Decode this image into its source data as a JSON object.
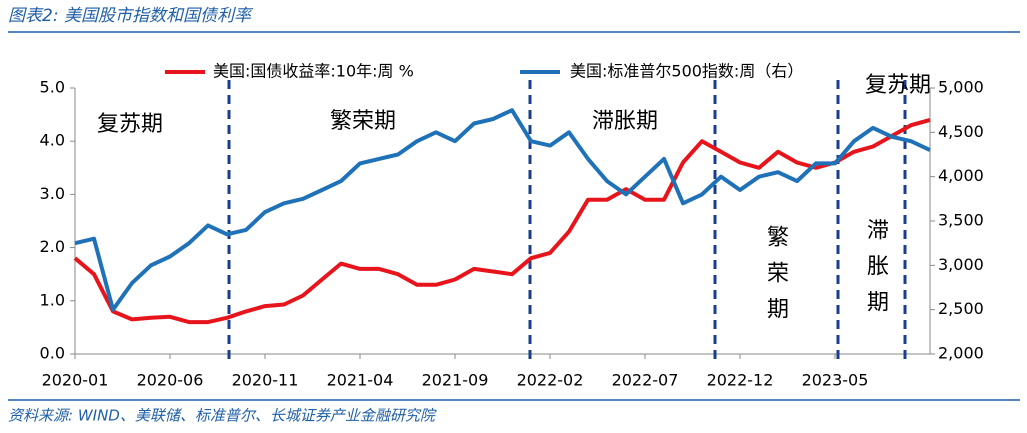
{
  "chart_data": {
    "type": "line",
    "title": "图表2: 美国股市指数和国债利率",
    "source": "资料来源: WIND、美联储、标准普尔、长城证券产业金融研究院",
    "categories": [
      "2020-01",
      null,
      null,
      null,
      null,
      "2020-06",
      null,
      null,
      null,
      null,
      "2020-11",
      null,
      null,
      null,
      null,
      "2021-04",
      null,
      null,
      null,
      null,
      "2021-09",
      null,
      null,
      null,
      null,
      "2022-02",
      null,
      null,
      null,
      null,
      "2022-07",
      null,
      null,
      null,
      null,
      "2022-12",
      null,
      null,
      null,
      null,
      "2023-05",
      null,
      null,
      null,
      null,
      null
    ],
    "series": [
      {
        "name": "美国:国债收益率:10年:周 %",
        "color": "#e8141b",
        "values": [
          1.8,
          1.5,
          0.8,
          0.65,
          0.68,
          0.7,
          0.6,
          0.6,
          0.68,
          0.8,
          0.9,
          0.93,
          1.1,
          1.4,
          1.7,
          1.6,
          1.6,
          1.5,
          1.3,
          1.3,
          1.4,
          1.6,
          1.55,
          1.5,
          1.8,
          1.9,
          2.3,
          2.9,
          2.9,
          3.1,
          2.9,
          2.9,
          3.6,
          4.0,
          3.8,
          3.6,
          3.5,
          3.8,
          3.6,
          3.5,
          3.6,
          3.8,
          3.9,
          4.1,
          4.3,
          4.4
        ]
      },
      {
        "name": "美国:标准普尔500指数:周（右）",
        "color": "#1f72b8",
        "axis": "y2",
        "values": [
          3250,
          3300,
          2500,
          2800,
          3000,
          3100,
          3250,
          3450,
          3350,
          3400,
          3600,
          3700,
          3750,
          3850,
          3950,
          4150,
          4200,
          4250,
          4400,
          4500,
          4400,
          4600,
          4650,
          4750,
          4400,
          4350,
          4500,
          4200,
          3950,
          3800,
          4000,
          4200,
          3700,
          3800,
          4000,
          3850,
          4000,
          4050,
          3950,
          4150,
          4150,
          4400,
          4550,
          4450,
          4400,
          4300
        ]
      }
    ],
    "ylim": [
      0,
      5
    ],
    "yticks": [
      {
        "value": 0,
        "label": "0.0"
      },
      {
        "value": 1,
        "label": "1.0"
      },
      {
        "value": 2,
        "label": "2.0"
      },
      {
        "value": 3,
        "label": "3.0"
      },
      {
        "value": 4,
        "label": "4.0"
      },
      {
        "value": 5,
        "label": "5.0"
      }
    ],
    "y2lim": [
      2000,
      5000
    ],
    "y2ticks": [
      {
        "value": 2000,
        "label": "2,000"
      },
      {
        "value": 2500,
        "label": "2,500"
      },
      {
        "value": 3000,
        "label": "3,000"
      },
      {
        "value": 3500,
        "label": "3,500"
      },
      {
        "value": 4000,
        "label": "4,000"
      },
      {
        "value": 4500,
        "label": "4,500"
      },
      {
        "value": 5000,
        "label": "5,000"
      }
    ],
    "annotations": [
      "复苏期",
      "繁荣期",
      "滞胀期",
      "复苏期",
      "繁荣期",
      "滞胀期"
    ]
  }
}
